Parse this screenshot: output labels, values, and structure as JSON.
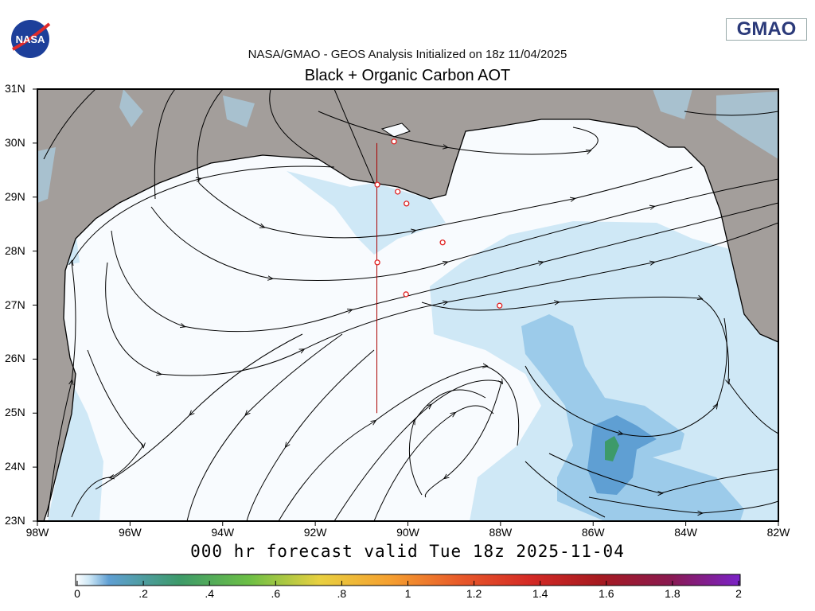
{
  "header": {
    "logo_left": "NASA",
    "logo_right": "GMAO",
    "subtitle": "NASA/GMAO - GEOS Analysis Initialized on 18z 11/04/2025",
    "title": "Black + Organic Carbon AOT"
  },
  "footer": "000 hr forecast valid Tue 18z 2025-11-04",
  "map": {
    "lon_range": [
      -98,
      -82
    ],
    "lat_range": [
      23,
      31
    ],
    "lat_labels": [
      "31N",
      "30N",
      "29N",
      "28N",
      "27N",
      "26N",
      "25N",
      "24N",
      "23N"
    ],
    "lon_labels": [
      "98W",
      "96W",
      "94W",
      "92W",
      "90W",
      "88W",
      "86W",
      "84W",
      "82W"
    ],
    "colors": {
      "land": "#a39e9b",
      "ocean": "#f8fbfe",
      "aot_low": "#cfe8f6",
      "aot_mid": "#9ccbea",
      "aot_high": "#5f9fd3",
      "aot_peak": "#3d9a6a",
      "stations": "#e02020"
    },
    "stations": [
      {
        "lon": -90.3,
        "lat": 30.03
      },
      {
        "lon": -90.66,
        "lat": 29.23
      },
      {
        "lon": -90.22,
        "lat": 29.1
      },
      {
        "lon": -90.03,
        "lat": 28.88
      },
      {
        "lon": -89.25,
        "lat": 28.16
      },
      {
        "lon": -90.66,
        "lat": 27.79
      },
      {
        "lon": -90.04,
        "lat": 27.2
      },
      {
        "lon": -88.02,
        "lat": 26.99
      }
    ],
    "transect": {
      "lon": -90.67,
      "lat_start": 30.0,
      "lat_end": 25.0
    }
  },
  "colorbar": {
    "labels": [
      "0",
      ".2",
      ".4",
      ".6",
      ".8",
      "1",
      "1.2",
      "1.4",
      "1.6",
      "1.8",
      "2"
    ],
    "range": [
      0,
      2
    ],
    "stops": [
      "#ffffff",
      "#cfe8f6",
      "#5f9fd3",
      "#3d9a6a",
      "#6cbf45",
      "#e8d040",
      "#f5a030",
      "#e85a2a",
      "#d42a25",
      "#a61a20",
      "#8a1a50",
      "#7a22c8"
    ]
  }
}
